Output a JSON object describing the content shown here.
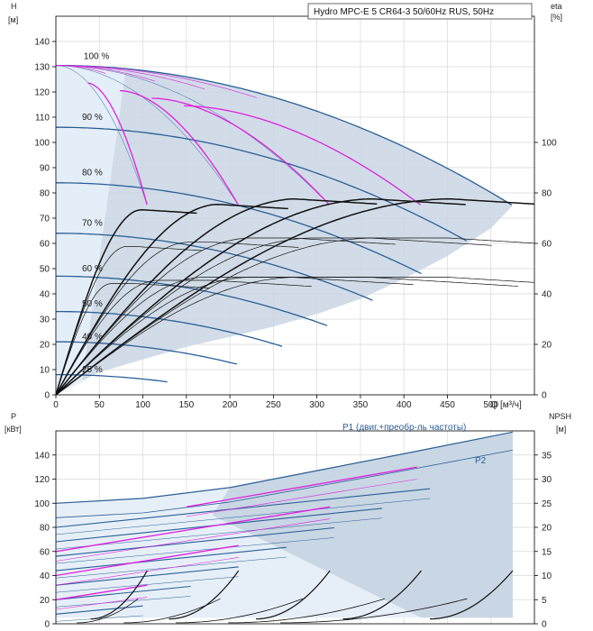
{
  "chart_data": [
    {
      "type": "line",
      "panel": "pump-curves",
      "title": "Hydro MPC-E 5 CR64-3 50/60Hz RUS, 50Hz",
      "ylabel": "H",
      "yunit": "[м]",
      "y2label": "eta",
      "y2unit": "[%]",
      "xlabel": "Q",
      "xunit": "[м³/ч]",
      "xlim": [
        0,
        550
      ],
      "ylim": [
        0,
        150
      ],
      "y2lim": [
        0,
        100
      ],
      "grid": true,
      "x_ticks": [
        0,
        50,
        100,
        150,
        200,
        250,
        300,
        350,
        400,
        450,
        500
      ],
      "y_ticks": [
        0,
        10,
        20,
        30,
        40,
        50,
        60,
        70,
        80,
        90,
        100,
        110,
        120,
        130,
        140
      ],
      "y2_ticks": [
        0,
        20,
        40,
        60,
        80,
        100
      ],
      "speed_labels": [
        {
          "text": "100 %",
          "q": 32,
          "h": 133
        },
        {
          "text": "90 %",
          "q": 30,
          "h": 109
        },
        {
          "text": "80 %",
          "q": 30,
          "h": 87
        },
        {
          "text": "70 %",
          "q": 30,
          "h": 67
        },
        {
          "text": "60 %",
          "q": 30,
          "h": 49
        },
        {
          "text": "50 %",
          "q": 30,
          "h": 35
        },
        {
          "text": "40 %",
          "q": 30,
          "h": 22
        },
        {
          "text": "25 %",
          "q": 30,
          "h": 9
        }
      ],
      "operating_range": {
        "outline_q": [
          0,
          50,
          100,
          150,
          200,
          250,
          300,
          350,
          400,
          450,
          500,
          525
        ],
        "outline_h": [
          0,
          9,
          14,
          19,
          23,
          27,
          32,
          38,
          46,
          55,
          66,
          75
        ]
      },
      "head_curves": [
        {
          "speed": 100,
          "h0": 130.5,
          "qmax": 525,
          "hmax": 75
        },
        {
          "speed": 90,
          "h0": 106,
          "qmax": 472,
          "hmax": 61
        },
        {
          "speed": 80,
          "h0": 84,
          "qmax": 420,
          "hmax": 48
        },
        {
          "speed": 70,
          "h0": 64,
          "qmax": 367,
          "hmax": 37
        },
        {
          "speed": 60,
          "h0": 47,
          "qmax": 315,
          "hmax": 27
        },
        {
          "speed": 50,
          "h0": 33,
          "qmax": 262,
          "hmax": 19
        },
        {
          "speed": 40,
          "h0": 21,
          "qmax": 210,
          "hmax": 12
        },
        {
          "speed": 25,
          "h0": 8,
          "qmax": 131,
          "hmax": 5
        }
      ],
      "multi_pump_curves": [
        {
          "pumps": 1,
          "qend": 105,
          "hend": 75
        },
        {
          "pumps": 2,
          "qend": 210,
          "hend": 75
        },
        {
          "pumps": 3,
          "qend": 315,
          "hend": 75
        },
        {
          "pumps": 4,
          "qend": 420,
          "hend": 75
        }
      ],
      "efficiency_peaks": [
        {
          "q": 90,
          "eta": 70
        },
        {
          "q": 180,
          "eta": 72
        },
        {
          "q": 270,
          "eta": 74
        },
        {
          "q": 360,
          "eta": 74
        },
        {
          "q": 450,
          "eta": 74
        }
      ]
    },
    {
      "type": "line",
      "panel": "power-npsh",
      "ylabel": "P",
      "yunit": "[кВт]",
      "y2label": "NPSH",
      "y2unit": "[м]",
      "xlim": [
        0,
        550
      ],
      "ylim": [
        0,
        160
      ],
      "y2lim": [
        0,
        40
      ],
      "grid": true,
      "y_ticks": [
        0,
        20,
        40,
        60,
        80,
        100,
        120,
        140
      ],
      "y2_ticks": [
        0,
        5,
        10,
        15,
        20,
        25,
        30,
        35
      ],
      "series_labels": [
        "P1 (двиг.+преобр-ль частоты)",
        "P2"
      ],
      "p1_top": {
        "q": [
          0,
          100,
          200,
          300,
          400,
          525
        ],
        "p": [
          100,
          104,
          113,
          127,
          141,
          159
        ]
      },
      "p2_top": {
        "q": [
          0,
          100,
          200,
          300,
          400,
          525
        ],
        "p": [
          88,
          92,
          101,
          114,
          127,
          144
        ]
      },
      "power_curves_1_pump": {
        "q": [
          0,
          105
        ],
        "p1": [
          20,
          30
        ]
      },
      "power_curves_4_pumps": {
        "q": [
          150,
          415
        ],
        "p1": [
          97,
          130
        ]
      },
      "npsh_curves": [
        {
          "pumps": 1,
          "q": [
            40,
            105
          ],
          "npsh": [
            1,
            11
          ]
        },
        {
          "pumps": 2,
          "q": [
            130,
            210
          ],
          "npsh": [
            1,
            11
          ]
        },
        {
          "pumps": 3,
          "q": [
            230,
            315
          ],
          "npsh": [
            1,
            11
          ]
        },
        {
          "pumps": 4,
          "q": [
            330,
            420
          ],
          "npsh": [
            1,
            11
          ]
        },
        {
          "pumps": 5,
          "q": [
            430,
            525
          ],
          "npsh": [
            1,
            11
          ]
        }
      ]
    }
  ]
}
